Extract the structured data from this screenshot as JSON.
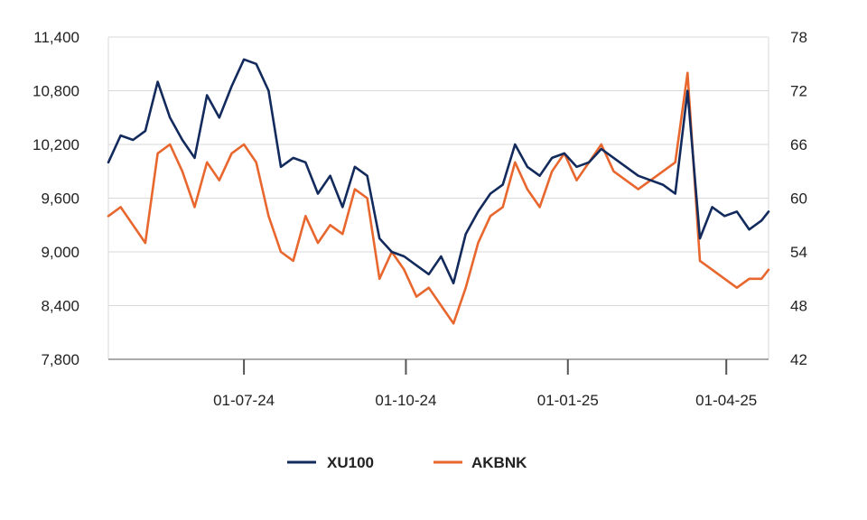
{
  "colors": {
    "xu100": "#132a5c",
    "akbnk": "#e8672e",
    "grid": "#d9d9d9",
    "axis": "#555555"
  },
  "chart_data": {
    "type": "line",
    "title": "",
    "xlabel": "",
    "ylabel": "",
    "y2label": "",
    "x_ticks": [
      "01-07-24",
      "01-10-24",
      "01-01-25",
      "01-04-25"
    ],
    "x_tick_dates": [
      "2024-07-01",
      "2024-10-01",
      "2025-01-01",
      "2025-04-01"
    ],
    "x_range": [
      "2024-04-15",
      "2025-04-25"
    ],
    "y_left": {
      "ticks": [
        "11,400",
        "10,800",
        "10,200",
        "9,600",
        "9,000",
        "8,400",
        "7,800"
      ],
      "range": [
        7800,
        11400
      ]
    },
    "y_right": {
      "ticks": [
        "78",
        "72",
        "66",
        "60",
        "54",
        "48",
        "42"
      ],
      "range": [
        42,
        78
      ]
    },
    "grid": "horizontal",
    "legend": "bottom-center",
    "series": [
      {
        "name": "XU100",
        "axis": "left",
        "dates": [
          "2024-04-15",
          "2024-04-22",
          "2024-04-29",
          "2024-05-06",
          "2024-05-13",
          "2024-05-20",
          "2024-05-27",
          "2024-06-03",
          "2024-06-10",
          "2024-06-17",
          "2024-06-24",
          "2024-07-01",
          "2024-07-08",
          "2024-07-15",
          "2024-07-22",
          "2024-07-29",
          "2024-08-05",
          "2024-08-12",
          "2024-08-19",
          "2024-08-26",
          "2024-09-02",
          "2024-09-09",
          "2024-09-16",
          "2024-09-23",
          "2024-09-30",
          "2024-10-07",
          "2024-10-14",
          "2024-10-21",
          "2024-10-28",
          "2024-11-04",
          "2024-11-11",
          "2024-11-18",
          "2024-11-25",
          "2024-12-02",
          "2024-12-09",
          "2024-12-16",
          "2024-12-23",
          "2024-12-30",
          "2025-01-06",
          "2025-01-13",
          "2025-01-20",
          "2025-01-27",
          "2025-02-03",
          "2025-02-10",
          "2025-02-17",
          "2025-02-24",
          "2025-03-03",
          "2025-03-10",
          "2025-03-17",
          "2025-03-24",
          "2025-03-31",
          "2025-04-07",
          "2025-04-14",
          "2025-04-21",
          "2025-04-25"
        ],
        "values": [
          10000,
          10300,
          10250,
          10350,
          10900,
          10500,
          10250,
          10050,
          10750,
          10500,
          10850,
          11150,
          11100,
          10800,
          9950,
          10050,
          10000,
          9650,
          9850,
          9500,
          9950,
          9850,
          9150,
          9000,
          8950,
          8850,
          8750,
          8950,
          8650,
          9200,
          9450,
          9650,
          9750,
          10200,
          9950,
          9850,
          10050,
          10100,
          9950,
          10000,
          10150,
          10050,
          9950,
          9850,
          9800,
          9750,
          9650,
          10800,
          9150,
          9500,
          9400,
          9450,
          9250,
          9350,
          9450
        ]
      },
      {
        "name": "AKBNK",
        "axis": "right",
        "dates": [
          "2024-04-15",
          "2024-04-22",
          "2024-04-29",
          "2024-05-06",
          "2024-05-13",
          "2024-05-20",
          "2024-05-27",
          "2024-06-03",
          "2024-06-10",
          "2024-06-17",
          "2024-06-24",
          "2024-07-01",
          "2024-07-08",
          "2024-07-15",
          "2024-07-22",
          "2024-07-29",
          "2024-08-05",
          "2024-08-12",
          "2024-08-19",
          "2024-08-26",
          "2024-09-02",
          "2024-09-09",
          "2024-09-16",
          "2024-09-23",
          "2024-09-30",
          "2024-10-07",
          "2024-10-14",
          "2024-10-21",
          "2024-10-28",
          "2024-11-04",
          "2024-11-11",
          "2024-11-18",
          "2024-11-25",
          "2024-12-02",
          "2024-12-09",
          "2024-12-16",
          "2024-12-23",
          "2024-12-30",
          "2025-01-06",
          "2025-01-13",
          "2025-01-20",
          "2025-01-27",
          "2025-02-03",
          "2025-02-10",
          "2025-02-17",
          "2025-02-24",
          "2025-03-03",
          "2025-03-10",
          "2025-03-17",
          "2025-03-24",
          "2025-03-31",
          "2025-04-07",
          "2025-04-14",
          "2025-04-21",
          "2025-04-25"
        ],
        "values": [
          58,
          59,
          57,
          55,
          65,
          66,
          63,
          59,
          64,
          62,
          65,
          66,
          64,
          58,
          54,
          53,
          58,
          55,
          57,
          56,
          61,
          60,
          51,
          54,
          52,
          49,
          50,
          48,
          46,
          50,
          55,
          58,
          59,
          64,
          61,
          59,
          63,
          65,
          62,
          64,
          66,
          63,
          62,
          61,
          62,
          63,
          64,
          74,
          53,
          52,
          51,
          50,
          51,
          51,
          52
        ]
      }
    ]
  }
}
